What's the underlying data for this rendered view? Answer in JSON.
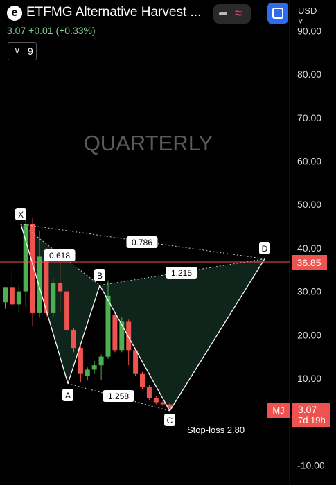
{
  "header": {
    "logo_letter": "e",
    "title": "ETFMG Alternative Harvest ...",
    "quote": "3.07  +0.01 (+0.33%)",
    "interval_value": "9",
    "currency": "USD",
    "colors": {
      "accent": "#2d6cf0",
      "up": "#4caf50",
      "down": "#ef5350"
    }
  },
  "watermark": "QUARTERLY",
  "symbol_tag": "MJ",
  "price_label": "3.07",
  "countdown": "7d 19h",
  "current_line_label": "36.85",
  "stop_loss": "Stop-loss 2.80",
  "pattern": {
    "points": [
      {
        "label": "X",
        "price": 45.5
      },
      {
        "label": "A",
        "price": 8.8
      },
      {
        "label": "B",
        "price": 31.4
      },
      {
        "label": "C",
        "price": 2.5
      },
      {
        "label": "D",
        "price": 37.5
      }
    ],
    "ratios": [
      "0.618",
      "0.786",
      "1.215",
      "1.258"
    ]
  },
  "chart_data": {
    "type": "candlestick",
    "y_ticks": [
      "90.00",
      "80.00",
      "70.00",
      "60.00",
      "50.00",
      "40.00",
      "30.00",
      "20.00",
      "10.00",
      "-10.00"
    ],
    "ylim": [
      -12,
      96
    ],
    "candles": [
      {
        "o": 27.5,
        "h": 31.0,
        "l": 26.0,
        "c": 31.0
      },
      {
        "o": 31.0,
        "h": 35.0,
        "l": 26.5,
        "c": 27.0
      },
      {
        "o": 27.0,
        "h": 31.5,
        "l": 25.0,
        "c": 30.0
      },
      {
        "o": 30.0,
        "h": 47.0,
        "l": 26.5,
        "c": 45.5
      },
      {
        "o": 45.5,
        "h": 47.0,
        "l": 22.0,
        "c": 25.0
      },
      {
        "o": 25.0,
        "h": 44.0,
        "l": 24.0,
        "c": 38.0
      },
      {
        "o": 38.0,
        "h": 40.0,
        "l": 24.0,
        "c": 25.0
      },
      {
        "o": 25.0,
        "h": 33.0,
        "l": 24.0,
        "c": 32.0
      },
      {
        "o": 32.0,
        "h": 39.0,
        "l": 25.0,
        "c": 30.0
      },
      {
        "o": 30.0,
        "h": 30.5,
        "l": 20.5,
        "c": 21.0
      },
      {
        "o": 21.0,
        "h": 21.5,
        "l": 16.0,
        "c": 17.0
      },
      {
        "o": 17.0,
        "h": 17.5,
        "l": 9.0,
        "c": 11.0
      },
      {
        "o": 10.5,
        "h": 12.5,
        "l": 9.5,
        "c": 12.0
      },
      {
        "o": 12.0,
        "h": 14.0,
        "l": 11.0,
        "c": 13.0
      },
      {
        "o": 13.0,
        "h": 15.5,
        "l": 9.5,
        "c": 15.0
      },
      {
        "o": 15.0,
        "h": 32.5,
        "l": 14.5,
        "c": 29.0
      },
      {
        "o": 24.5,
        "h": 25.0,
        "l": 16.0,
        "c": 16.5
      },
      {
        "o": 16.5,
        "h": 24.0,
        "l": 16.0,
        "c": 23.0
      },
      {
        "o": 23.0,
        "h": 23.5,
        "l": 13.0,
        "c": 16.5
      },
      {
        "o": 16.5,
        "h": 17.0,
        "l": 10.5,
        "c": 11.0
      },
      {
        "o": 11.0,
        "h": 11.5,
        "l": 7.5,
        "c": 8.0
      },
      {
        "o": 8.0,
        "h": 8.5,
        "l": 5.0,
        "c": 5.5
      },
      {
        "o": 5.5,
        "h": 6.0,
        "l": 4.0,
        "c": 4.5
      },
      {
        "o": 4.5,
        "h": 5.0,
        "l": 3.5,
        "c": 4.0
      },
      {
        "o": 4.0,
        "h": 4.3,
        "l": 2.8,
        "c": 3.1
      }
    ]
  }
}
